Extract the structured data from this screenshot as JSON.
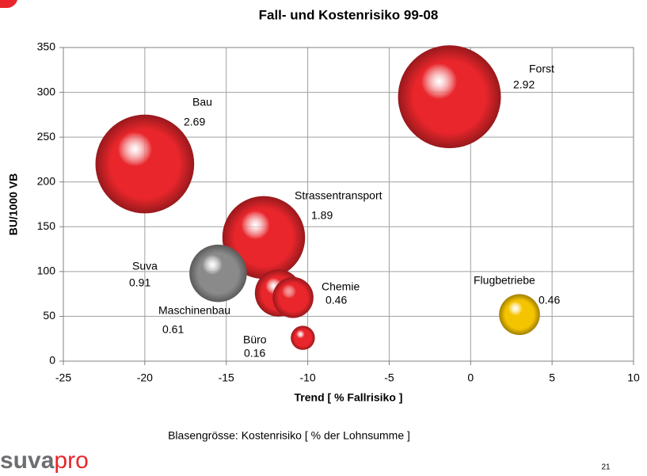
{
  "chart_data": {
    "type": "bubble",
    "title": "Fall- und Kostenrisiko 99-08",
    "xlabel": "Trend [ % Fallrisiko ]",
    "ylabel": "BU/1000 VB",
    "note": "Blasengrösse:  Kostenrisiko [ % der Lohnsumme ]",
    "categories": [
      "Bau",
      "Forst",
      "Strassentransport",
      "Suva",
      "Maschinenbau",
      "Chemie",
      "Flugbetriebe",
      "Büro"
    ],
    "x": [
      -20,
      -1.3,
      -12.7,
      -15.5,
      -11.8,
      -10.9,
      3,
      -10.3
    ],
    "values": [
      220,
      295,
      138,
      98,
      76,
      71,
      52,
      26
    ],
    "sizes": [
      2.69,
      2.92,
      1.89,
      0.91,
      0.61,
      0.46,
      0.46,
      0.16
    ],
    "colors": [
      "#e8262b",
      "#e8262b",
      "#e8262b",
      "#8a8a8a",
      "#e8262b",
      "#e8262b",
      "#f5c400",
      "#e8262b"
    ],
    "xlim": [
      -25,
      10
    ],
    "xticks": [
      -25,
      -20,
      -15,
      -10,
      -5,
      0,
      5,
      10
    ],
    "ylim": [
      0,
      350
    ],
    "yticks": [
      0,
      50,
      100,
      150,
      200,
      250,
      300,
      350
    ],
    "grid": true
  },
  "footer": {
    "logo": [
      "suva",
      "pro"
    ],
    "page": "21"
  }
}
